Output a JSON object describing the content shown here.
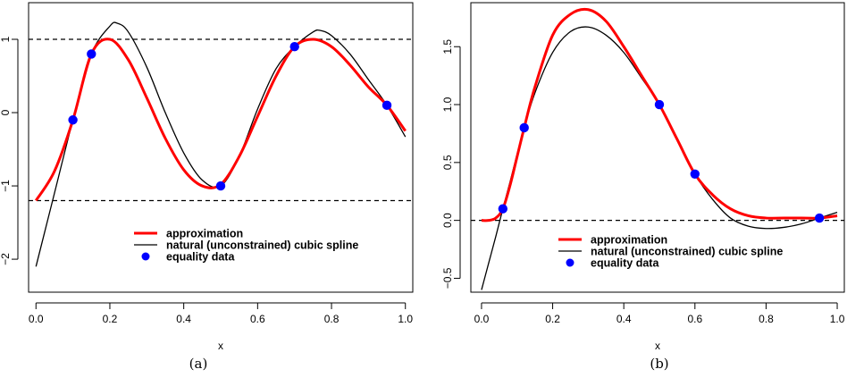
{
  "chart_data": [
    {
      "id": "a",
      "type": "line",
      "caption": "(a)",
      "xlabel": "x",
      "ylabel": "",
      "xlim": [
        -0.02,
        1.02
      ],
      "ylim": [
        -2.45,
        1.5
      ],
      "xticks": [
        0.0,
        0.2,
        0.4,
        0.6,
        0.8,
        1.0
      ],
      "xtick_labels": [
        "0.0",
        "0.2",
        "0.4",
        "0.6",
        "0.8",
        "1.0"
      ],
      "yticks": [
        -2,
        -1,
        0,
        1
      ],
      "ytick_labels": [
        "−2",
        "−1",
        "0",
        "1"
      ],
      "hlines": [
        1.0,
        -1.2
      ],
      "legend": {
        "position": "bottom-center",
        "entries": [
          {
            "label": "approximation",
            "style": "thick-red-line"
          },
          {
            "label": "natural (unconstrained) cubic spline",
            "style": "thin-black-line"
          },
          {
            "label": "equality data",
            "style": "blue-dot"
          }
        ]
      },
      "series": [
        {
          "name": "approximation",
          "color": "#ff0000",
          "x": [
            0.0,
            0.05,
            0.1,
            0.15,
            0.2,
            0.25,
            0.3,
            0.35,
            0.4,
            0.45,
            0.5,
            0.55,
            0.6,
            0.65,
            0.7,
            0.75,
            0.8,
            0.85,
            0.9,
            0.95,
            1.0
          ],
          "y": [
            -1.2,
            -0.8,
            -0.1,
            0.8,
            1.0,
            0.72,
            0.2,
            -0.35,
            -0.78,
            -1.0,
            -0.98,
            -0.6,
            -0.05,
            0.5,
            0.9,
            1.0,
            0.9,
            0.65,
            0.35,
            0.1,
            -0.25
          ]
        },
        {
          "name": "natural (unconstrained) cubic spline",
          "color": "#000000",
          "x": [
            0.0,
            0.05,
            0.1,
            0.15,
            0.2,
            0.22,
            0.25,
            0.3,
            0.35,
            0.4,
            0.45,
            0.5,
            0.55,
            0.6,
            0.65,
            0.7,
            0.75,
            0.77,
            0.8,
            0.85,
            0.9,
            0.95,
            1.0
          ],
          "y": [
            -2.1,
            -1.1,
            -0.1,
            0.8,
            1.18,
            1.22,
            1.1,
            0.62,
            0.0,
            -0.55,
            -0.92,
            -1.0,
            -0.6,
            0.05,
            0.6,
            0.9,
            1.1,
            1.12,
            1.05,
            0.8,
            0.45,
            0.1,
            -0.33
          ]
        },
        {
          "name": "equality data",
          "color": "#0000ff",
          "x": [
            0.1,
            0.15,
            0.5,
            0.7,
            0.95
          ],
          "y": [
            -0.1,
            0.8,
            -1.0,
            0.9,
            0.1
          ]
        }
      ]
    },
    {
      "id": "b",
      "type": "line",
      "caption": "(b)",
      "xlabel": "x",
      "ylabel": "",
      "xlim": [
        -0.03,
        1.02
      ],
      "ylim": [
        -0.62,
        1.88
      ],
      "xticks": [
        0.0,
        0.2,
        0.4,
        0.6,
        0.8,
        1.0
      ],
      "xtick_labels": [
        "0.0",
        "0.2",
        "0.4",
        "0.6",
        "0.8",
        "1.0"
      ],
      "yticks": [
        -0.5,
        0.0,
        0.5,
        1.0,
        1.5
      ],
      "ytick_labels": [
        "−0.5",
        "0.0",
        "0.5",
        "1.0",
        "1.5"
      ],
      "hlines": [
        0.0
      ],
      "legend": {
        "position": "bottom-center",
        "entries": [
          {
            "label": "approximation",
            "style": "thick-red-line"
          },
          {
            "label": "natural (unconstrained) cubic spline",
            "style": "thin-black-line"
          },
          {
            "label": "equality data",
            "style": "blue-dot"
          }
        ]
      },
      "series": [
        {
          "name": "approximation",
          "color": "#ff0000",
          "x": [
            0.0,
            0.02,
            0.04,
            0.06,
            0.08,
            0.1,
            0.12,
            0.15,
            0.2,
            0.25,
            0.3,
            0.35,
            0.4,
            0.45,
            0.5,
            0.55,
            0.6,
            0.65,
            0.7,
            0.75,
            0.8,
            0.85,
            0.9,
            0.95,
            1.0
          ],
          "y": [
            0.0,
            0.0,
            0.02,
            0.1,
            0.3,
            0.55,
            0.8,
            1.15,
            1.6,
            1.78,
            1.82,
            1.72,
            1.5,
            1.25,
            1.0,
            0.7,
            0.4,
            0.22,
            0.1,
            0.04,
            0.02,
            0.02,
            0.02,
            0.02,
            0.04
          ]
        },
        {
          "name": "natural (unconstrained) cubic spline",
          "color": "#000000",
          "x": [
            0.0,
            0.02,
            0.04,
            0.06,
            0.08,
            0.1,
            0.12,
            0.15,
            0.2,
            0.25,
            0.3,
            0.35,
            0.4,
            0.45,
            0.5,
            0.55,
            0.6,
            0.65,
            0.7,
            0.75,
            0.8,
            0.85,
            0.9,
            0.95,
            1.0
          ],
          "y": [
            -0.6,
            -0.37,
            -0.14,
            0.1,
            0.33,
            0.57,
            0.8,
            1.1,
            1.45,
            1.63,
            1.67,
            1.6,
            1.45,
            1.23,
            1.0,
            0.7,
            0.4,
            0.18,
            0.02,
            -0.05,
            -0.07,
            -0.06,
            -0.03,
            0.02,
            0.07
          ]
        },
        {
          "name": "equality data",
          "color": "#0000ff",
          "x": [
            0.06,
            0.12,
            0.5,
            0.6,
            0.95
          ],
          "y": [
            0.1,
            0.8,
            1.0,
            0.4,
            0.02
          ]
        }
      ]
    }
  ]
}
